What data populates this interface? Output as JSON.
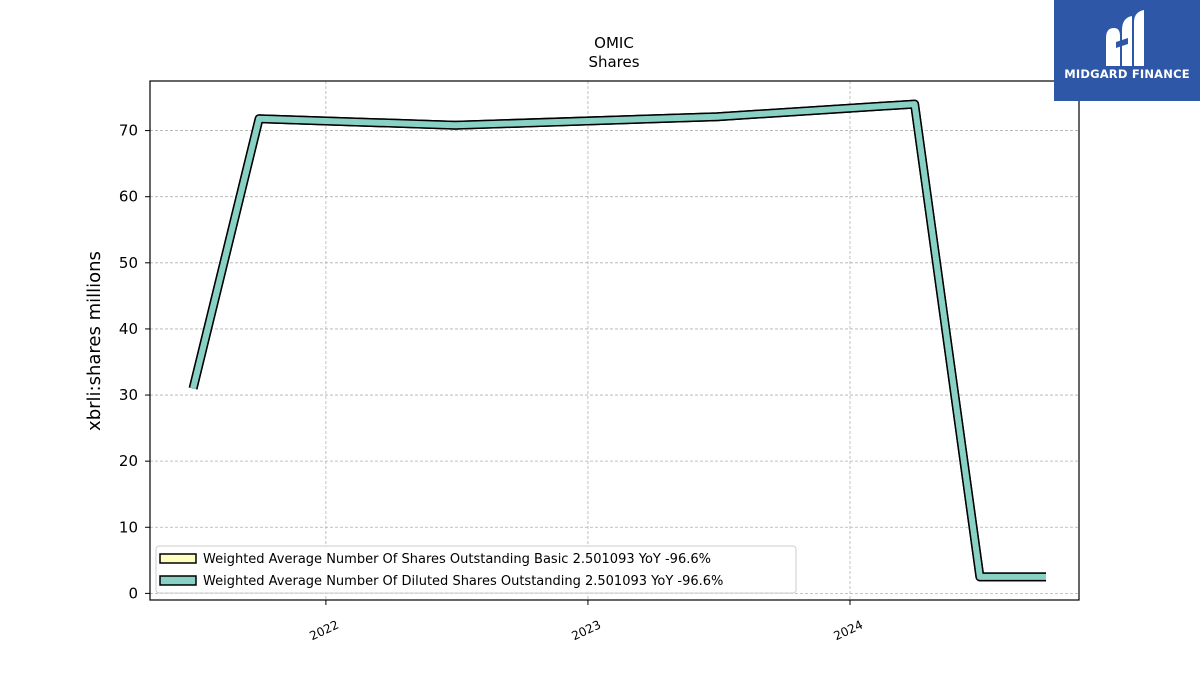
{
  "brand": {
    "name": "MIDGARD FINANCE",
    "logo_icon": "midgard-m-logo-icon",
    "logo_bg": "#2f57a8"
  },
  "chart_data": {
    "type": "line",
    "title": "OMIC",
    "subtitle": "Shares",
    "xlabel": "",
    "ylabel": "xbrli:shares millions",
    "xticks": [
      "2022",
      "2023",
      "2024"
    ],
    "yticks": [
      0,
      10,
      20,
      30,
      40,
      50,
      60,
      70
    ],
    "xlim": [
      "2021-05-01",
      "2024-11-15"
    ],
    "ylim": [
      -1,
      77.5
    ],
    "grid": true,
    "legend_position": "lower-left",
    "x": [
      "2021-06-30",
      "2021-09-30",
      "2022-06-30",
      "2023-06-30",
      "2024-03-31",
      "2024-06-30",
      "2024-09-30"
    ],
    "series": [
      {
        "name": "Weighted Average Number Of Shares Outstanding Basic  2.501093 YoY -96.6%",
        "color": "#ffffbf",
        "values": [
          31.0,
          71.8,
          70.8,
          72.1,
          74.0,
          2.5,
          2.5
        ]
      },
      {
        "name": "Weighted Average Number Of Diluted Shares Outstanding  2.501093 YoY -96.6%",
        "color": "#88d1c4",
        "values": [
          31.0,
          71.8,
          70.8,
          72.1,
          74.0,
          2.5,
          2.5
        ]
      }
    ]
  }
}
